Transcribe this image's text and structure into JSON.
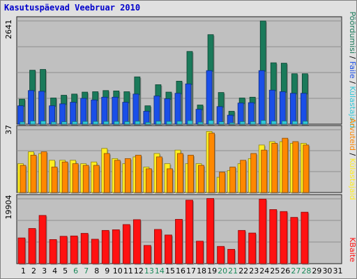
{
  "chart_data": {
    "type": "bar",
    "title": "Kasutuspäevad Veebruar 2010",
    "categories": [
      "1",
      "2",
      "3",
      "4",
      "5",
      "6",
      "7",
      "8",
      "9",
      "10",
      "11",
      "12",
      "13",
      "14",
      "15",
      "16",
      "17",
      "18",
      "19",
      "20",
      "21",
      "22",
      "23",
      "24",
      "25",
      "26",
      "27",
      "28",
      "29",
      "30",
      "31"
    ],
    "weekend_days": [
      "6",
      "7",
      "13",
      "14",
      "20",
      "21",
      "27",
      "28"
    ],
    "panels": [
      {
        "id": "top",
        "max_label": "2641",
        "ylim": [
          0,
          2641
        ],
        "legend": [
          "Pöördumisi",
          "Faile",
          "Külastajaid"
        ],
        "series": [
          {
            "name": "Pöördumisi",
            "color": "#1a7a5a",
            "values": [
              640,
              1380,
              1400,
              670,
              740,
              770,
              820,
              830,
              860,
              850,
              830,
              1210,
              470,
              1010,
              820,
              1100,
              1860,
              490,
              2290,
              810,
              330,
              670,
              690,
              2640,
              1570,
              1560,
              1290,
              1290,
              null,
              null,
              null
            ]
          },
          {
            "name": "Faile",
            "color": "#1a4fe8",
            "values": [
              470,
              860,
              840,
              470,
              520,
              560,
              660,
              620,
              690,
              690,
              560,
              770,
              330,
              720,
              650,
              790,
              1030,
              380,
              1370,
              450,
              230,
              540,
              550,
              1370,
              870,
              830,
              790,
              790,
              null,
              null,
              null
            ]
          },
          {
            "name": "Külastajaid",
            "color": "#30c8d8",
            "values": [
              55,
              80,
              80,
              55,
              60,
              65,
              70,
              70,
              70,
              70,
              65,
              75,
              45,
              75,
              70,
              75,
              90,
              50,
              95,
              60,
              35,
              65,
              65,
              95,
              80,
              80,
              75,
              75,
              null,
              null,
              null
            ]
          }
        ]
      },
      {
        "id": "middle",
        "max_label": "37",
        "ylim": [
          0,
          37
        ],
        "legend": [
          "Arvuteid",
          "Külastajaid"
        ],
        "series": [
          {
            "name": "Külastajaid",
            "color": "#ffee22",
            "values": [
              17,
              24,
              23,
              19,
              19,
              19,
              17,
              18,
              26,
              20,
              17,
              21,
              15,
              23,
              17,
              25,
              17,
              17,
              36,
              9,
              13,
              17,
              20,
              28,
              30,
              30,
              29,
              29,
              null,
              null,
              null
            ]
          },
          {
            "name": "Arvuteid",
            "color": "#ff8800",
            "values": [
              16,
              22,
              24,
              15,
              18,
              17,
              16,
              16,
              23,
              19,
              20,
              22,
              14,
              21,
              14,
              23,
              22,
              16,
              35,
              12,
              15,
              19,
              23,
              25,
              29,
              32,
              30,
              28,
              null,
              null,
              null
            ]
          }
        ]
      },
      {
        "id": "bottom",
        "max_label": "19904",
        "ylim": [
          0,
          19904
        ],
        "legend": [
          "KBaite"
        ],
        "series": [
          {
            "name": "KBaite",
            "color": "#ff1111",
            "values": [
              7900,
              10800,
              14800,
              7400,
              8400,
              8500,
              9300,
              7500,
              10200,
              10400,
              12000,
              13500,
              5600,
              10500,
              8800,
              13600,
              19500,
              6900,
              20000,
              5300,
              4400,
              10200,
              9400,
              19800,
              16600,
              16000,
              14200,
              15800,
              null,
              null,
              null
            ]
          }
        ]
      }
    ]
  }
}
